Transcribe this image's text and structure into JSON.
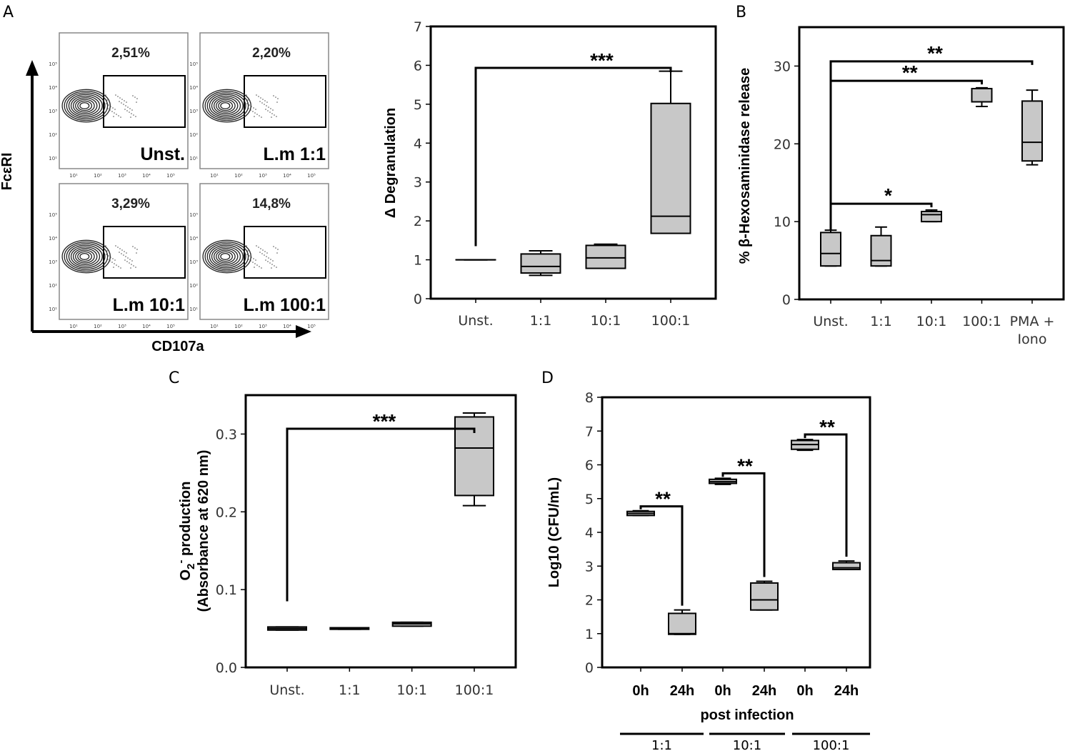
{
  "panel_letters": {
    "A": "A",
    "B": "B",
    "C": "C",
    "D": "D"
  },
  "chart_data": [
    {
      "id": "A-flow",
      "type": "flow-cytometry",
      "xlabel": "CD107a",
      "ylabel": "FcεRI",
      "tick_labels": [
        "10¹",
        "10²",
        "10³",
        "10⁴",
        "10⁵"
      ],
      "plots": [
        {
          "label": "Unst.",
          "percent": "2,51%"
        },
        {
          "label": "L.m 1:1",
          "percent": "2,20%"
        },
        {
          "label": "L.m 10:1",
          "percent": "3,29%"
        },
        {
          "label": "L.m 100:1",
          "percent": "14,8%"
        }
      ]
    },
    {
      "id": "A-box",
      "type": "box",
      "title": "",
      "ylabel": "Δ Degranulation",
      "ylim": [
        0,
        7
      ],
      "yticks": [
        0,
        1,
        2,
        3,
        4,
        5,
        6,
        7
      ],
      "categories": [
        "Unst.",
        "1:1",
        "10:1",
        "100:1"
      ],
      "boxes": [
        {
          "min": 1.0,
          "q1": 1.0,
          "median": 1.0,
          "q3": 1.0,
          "max": 1.0
        },
        {
          "min": 0.6,
          "q1": 0.66,
          "median": 0.83,
          "q3": 1.15,
          "max": 1.23
        },
        {
          "min": 0.78,
          "q1": 0.78,
          "median": 1.05,
          "q3": 1.37,
          "max": 1.4
        },
        {
          "min": 1.68,
          "q1": 1.68,
          "median": 2.12,
          "q3": 5.02,
          "max": 5.85
        }
      ],
      "significance": [
        {
          "from": 0,
          "to": 3,
          "label": "***"
        }
      ]
    },
    {
      "id": "B",
      "type": "box",
      "ylabel": "% β-Hexosaminidase release",
      "ylim": [
        0,
        35
      ],
      "yticks": [
        0,
        10,
        20,
        30
      ],
      "categories": [
        "Unst.",
        "1:1",
        "10:1",
        "100:1",
        "PMA + Iono"
      ],
      "boxes": [
        {
          "min": 4.3,
          "q1": 4.3,
          "median": 5.9,
          "q3": 8.6,
          "max": 8.9
        },
        {
          "min": 4.3,
          "q1": 4.3,
          "median": 5.0,
          "q3": 8.2,
          "max": 9.3
        },
        {
          "min": 10.0,
          "q1": 10.0,
          "median": 10.9,
          "q3": 11.3,
          "max": 11.5
        },
        {
          "min": 24.8,
          "q1": 25.4,
          "median": 27.1,
          "q3": 27.1,
          "max": 27.2
        },
        {
          "min": 17.3,
          "q1": 17.8,
          "median": 20.2,
          "q3": 25.5,
          "max": 26.9
        }
      ],
      "significance": [
        {
          "from": 0,
          "to": 4,
          "label": "**",
          "y": 30.6
        },
        {
          "from": 0,
          "to": 3,
          "label": "**",
          "y": 28.1
        },
        {
          "from": 0,
          "to": 2,
          "label": "*",
          "y": 12.3
        }
      ]
    },
    {
      "id": "C",
      "type": "box",
      "ylabel": "O2⁻ production (Absorbance at 620 nm)",
      "ylabel_line1": "O",
      "ylabel_sub": "2",
      "ylabel_sup": "-",
      "ylabel_rest": " production",
      "ylabel_line2": "(Absorbance at 620 nm)",
      "ylim": [
        0,
        0.35
      ],
      "yticks": [
        0.0,
        0.1,
        0.2,
        0.3
      ],
      "ytick_labels": [
        "0.0",
        "0.1",
        "0.2",
        "0.3"
      ],
      "categories": [
        "Unst.",
        "1:1",
        "10:1",
        "100:1"
      ],
      "boxes": [
        {
          "min": 0.048,
          "q1": 0.048,
          "median": 0.05,
          "q3": 0.052,
          "max": 0.052
        },
        {
          "min": 0.049,
          "q1": 0.049,
          "median": 0.05,
          "q3": 0.051,
          "max": 0.051
        },
        {
          "min": 0.053,
          "q1": 0.053,
          "median": 0.056,
          "q3": 0.058,
          "max": 0.058
        },
        {
          "min": 0.208,
          "q1": 0.221,
          "median": 0.282,
          "q3": 0.322,
          "max": 0.327
        }
      ],
      "significance": [
        {
          "from": 0,
          "to": 3,
          "label": "***"
        }
      ]
    },
    {
      "id": "D",
      "type": "box",
      "ylabel": "Log10 (CFU/mL)",
      "xlabel": "post infection",
      "ylim": [
        0,
        8
      ],
      "yticks": [
        0,
        1,
        2,
        3,
        4,
        5,
        6,
        7,
        8
      ],
      "categories": [
        "0h",
        "24h",
        "0h",
        "24h",
        "0h",
        "24h"
      ],
      "groups": [
        "1:1",
        "10:1",
        "100:1"
      ],
      "boxes": [
        {
          "min": 4.5,
          "q1": 4.5,
          "median": 4.56,
          "q3": 4.62,
          "max": 4.64
        },
        {
          "min": 0.98,
          "q1": 0.98,
          "median": 1.0,
          "q3": 1.6,
          "max": 1.7
        },
        {
          "min": 5.42,
          "q1": 5.45,
          "median": 5.5,
          "q3": 5.57,
          "max": 5.6
        },
        {
          "min": 1.7,
          "q1": 1.7,
          "median": 2.0,
          "q3": 2.5,
          "max": 2.55
        },
        {
          "min": 6.43,
          "q1": 6.46,
          "median": 6.6,
          "q3": 6.72,
          "max": 6.75
        },
        {
          "min": 2.9,
          "q1": 2.9,
          "median": 2.95,
          "q3": 3.1,
          "max": 3.15
        }
      ],
      "significance": [
        {
          "from": 0,
          "to": 1,
          "label": "**",
          "y": 4.77
        },
        {
          "from": 2,
          "to": 3,
          "label": "**",
          "y": 5.75
        },
        {
          "from": 4,
          "to": 5,
          "label": "**",
          "y": 6.9
        }
      ]
    }
  ],
  "colors": {
    "box_fill": "#c8c8c8",
    "line": "#000000"
  }
}
